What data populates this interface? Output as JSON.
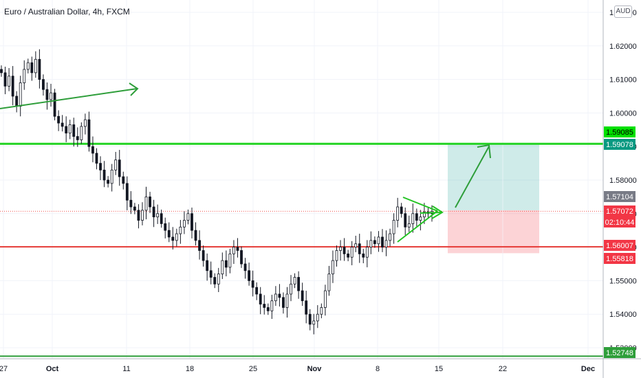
{
  "chart_data": {
    "type": "candlestick",
    "title": "Euro / Australian Dollar, 4h, FXCM",
    "currency": "AUD",
    "y_ticks": [
      "1.63000",
      "1.62000",
      "1.61000",
      "1.60000",
      "1.59000",
      "1.58000",
      "1.57000",
      "1.56000",
      "1.55000",
      "1.54000",
      "1.53000"
    ],
    "x_ticks": [
      "27",
      "Oct",
      "11",
      "18",
      "25",
      "Nov",
      "8",
      "15",
      "22",
      "Dec"
    ],
    "ylim": [
      1.5275,
      1.6335
    ],
    "grid": true,
    "closes": [
      1.612,
      1.608,
      1.611,
      1.605,
      1.602,
      1.609,
      1.613,
      1.615,
      1.612,
      1.616,
      1.61,
      1.607,
      1.604,
      1.606,
      1.599,
      1.597,
      1.596,
      1.594,
      1.5965,
      1.593,
      1.592,
      1.596,
      1.598,
      1.59,
      1.588,
      1.585,
      1.583,
      1.58,
      1.579,
      1.583,
      1.586,
      1.581,
      1.579,
      1.574,
      1.572,
      1.571,
      1.568,
      1.571,
      1.575,
      1.572,
      1.569,
      1.57,
      1.567,
      1.565,
      1.563,
      1.562,
      1.564,
      1.566,
      1.568,
      1.57,
      1.565,
      1.562,
      1.559,
      1.556,
      1.553,
      1.551,
      1.549,
      1.552,
      1.556,
      1.554,
      1.558,
      1.56,
      1.559,
      1.555,
      1.553,
      1.55,
      1.548,
      1.546,
      1.543,
      1.542,
      1.541,
      1.544,
      1.546,
      1.545,
      1.542,
      1.546,
      1.549,
      1.551,
      1.547,
      1.544,
      1.54,
      1.537,
      1.538,
      1.54,
      1.542,
      1.547,
      1.552,
      1.556,
      1.559,
      1.56,
      1.558,
      1.557,
      1.56,
      1.561,
      1.558,
      1.557,
      1.56,
      1.562,
      1.561,
      1.563,
      1.56,
      1.562,
      1.564,
      1.568,
      1.572,
      1.57,
      1.566,
      1.567,
      1.57,
      1.568,
      1.569,
      1.5705,
      1.57,
      1.5707
    ],
    "last_price": "1.57072",
    "countdown": "02:10:44",
    "price_labels": [
      {
        "value": "1.59085",
        "bg": "#00e000",
        "fg": "#000000"
      },
      {
        "value": "1.59078",
        "bg": "#089981",
        "fg": "#ffffff"
      },
      {
        "value": "1.57104",
        "bg": "#787b86",
        "fg": "#ffffff"
      },
      {
        "value": "1.57072",
        "bg": "#f23645",
        "fg": "#ffffff"
      },
      {
        "value": "1.56007",
        "bg": "#f23645",
        "fg": "#ffffff"
      },
      {
        "value": "1.55818",
        "bg": "#f23645",
        "fg": "#ffffff"
      },
      {
        "value": "1.52748",
        "bg": "#2e9e3a",
        "fg": "#ffffff"
      }
    ],
    "horizontal_lines": [
      {
        "price": 1.5908,
        "color": "#22d322"
      },
      {
        "price": 1.5601,
        "color": "#e53935"
      },
      {
        "price": 1.5275,
        "color": "#2e9e3a"
      }
    ],
    "position_tool": {
      "entry": 1.571,
      "target": 1.5908,
      "stop": 1.5582
    },
    "colors": {
      "up": "#26a69a",
      "down": "#ef5350",
      "candle": "#131722",
      "grid": "#f0f3fa",
      "drawing": "#2e9e3a",
      "triangle": "#22c322"
    }
  }
}
